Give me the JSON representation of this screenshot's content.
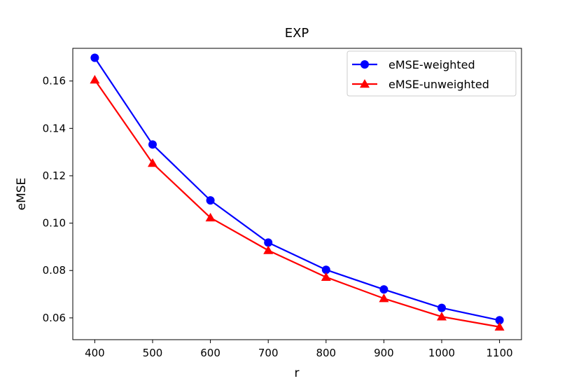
{
  "chart_data": {
    "type": "line",
    "title": "EXP",
    "xlabel": "r",
    "ylabel": "eMSE",
    "x": [
      400,
      500,
      600,
      700,
      800,
      900,
      1000,
      1100
    ],
    "xlim": [
      362,
      1138
    ],
    "ylim": [
      0.0508,
      0.1738
    ],
    "xticks": [
      "400",
      "500",
      "600",
      "700",
      "800",
      "900",
      "1000",
      "1100"
    ],
    "yticks": [
      "0.06",
      "0.08",
      "0.10",
      "0.12",
      "0.14",
      "0.16"
    ],
    "ytick_values": [
      0.06,
      0.08,
      0.1,
      0.12,
      0.14,
      0.16
    ],
    "grid": false,
    "legend_position": "top-right",
    "series": [
      {
        "name": "eMSE-weighted",
        "color": "#0000ff",
        "marker": "circle",
        "values": [
          0.1698,
          0.1332,
          0.1096,
          0.0918,
          0.0803,
          0.072,
          0.0642,
          0.059
        ]
      },
      {
        "name": "eMSE-unweighted",
        "color": "#ff0000",
        "marker": "triangle",
        "values": [
          0.1605,
          0.1253,
          0.1023,
          0.0885,
          0.0772,
          0.0682,
          0.0605,
          0.0562
        ]
      }
    ]
  }
}
